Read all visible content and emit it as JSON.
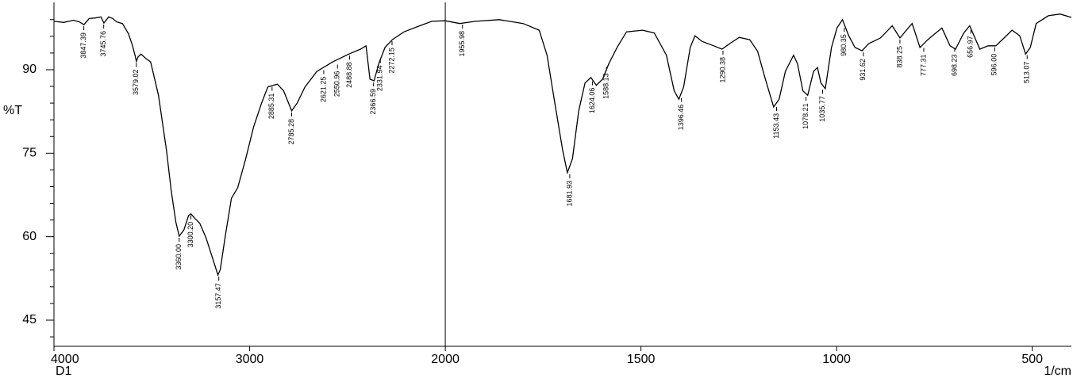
{
  "chart_data": {
    "type": "line",
    "y_label": "%T",
    "x_label": "1/cm",
    "sample": "D1",
    "xlim": [
      4000,
      400
    ],
    "x_break": 2000,
    "x_break_scale": 2,
    "xticks": [
      4000,
      3000,
      2000,
      1500,
      1000,
      500
    ],
    "ylim": [
      40.3,
      102.1
    ],
    "yticks": [
      45,
      60,
      75,
      90
    ],
    "yminor_ticks": [
      42,
      48,
      51,
      54,
      57,
      63,
      66,
      69,
      72,
      78,
      81,
      84,
      87,
      93,
      96,
      99
    ],
    "series": [
      {
        "color": "#000000",
        "x": [
          4000,
          3950,
          3900,
          3870,
          3847,
          3820,
          3790,
          3760,
          3745,
          3720,
          3700,
          3680,
          3650,
          3620,
          3600,
          3585,
          3579,
          3570,
          3555,
          3530,
          3506,
          3466,
          3425,
          3401,
          3377,
          3360,
          3336,
          3312,
          3300,
          3283,
          3255,
          3223,
          3190,
          3162,
          3150,
          3126,
          3093,
          3061,
          3020,
          2980,
          2939,
          2907,
          2879,
          2858,
          2826,
          2785,
          2757,
          2717,
          2656,
          2575,
          2494,
          2433,
          2405,
          2385,
          2364,
          2340,
          2308,
          2271,
          2211,
          2130,
          2069,
          2000,
          1963,
          1923,
          1862,
          1801,
          1760,
          1740,
          1720,
          1700,
          1688,
          1675,
          1659,
          1643,
          1628,
          1614,
          1598,
          1582,
          1561,
          1537,
          1496,
          1466,
          1435,
          1415,
          1403,
          1391,
          1374,
          1362,
          1344,
          1314,
          1293,
          1273,
          1249,
          1222,
          1202,
          1182,
          1161,
          1147,
          1131,
          1110,
          1100,
          1086,
          1074,
          1059,
          1049,
          1040,
          1029,
          1013,
          999,
          985,
          969,
          953,
          935,
          918,
          888,
          858,
          838,
          817,
          807,
          787,
          767,
          731,
          710,
          696,
          675,
          660,
          634,
          613,
          593,
          572,
          552,
          532,
          517,
          505,
          490,
          459,
          429,
          400
        ],
        "values": [
          98.7,
          98.5,
          98.9,
          98.6,
          98.1,
          99.2,
          99.3,
          99.5,
          98.4,
          99.5,
          99.2,
          98.6,
          98.3,
          96.5,
          94.5,
          92.5,
          91.5,
          92.3,
          92.8,
          92.0,
          91.4,
          85.4,
          75.5,
          68.3,
          62.6,
          60.1,
          61.2,
          63.8,
          64.1,
          63.4,
          62.4,
          59.8,
          56.2,
          53.1,
          54.1,
          59.8,
          66.9,
          68.8,
          74.0,
          79.7,
          84.0,
          86.9,
          87.2,
          87.4,
          86.2,
          82.6,
          84.0,
          86.9,
          89.7,
          91.4,
          92.8,
          93.7,
          94.3,
          88.3,
          88.0,
          91.1,
          94.0,
          95.4,
          96.8,
          97.9,
          98.7,
          98.8,
          98.3,
          98.7,
          99.0,
          98.3,
          97.1,
          92.6,
          84.0,
          75.5,
          71.5,
          74.0,
          82.6,
          87.6,
          88.6,
          87.2,
          88.3,
          91.1,
          94.0,
          96.8,
          97.1,
          96.6,
          92.6,
          86.2,
          84.7,
          86.9,
          94.0,
          96.1,
          95.1,
          94.3,
          93.7,
          94.7,
          95.8,
          95.4,
          93.3,
          88.3,
          83.3,
          84.7,
          89.7,
          92.6,
          91.1,
          86.2,
          85.4,
          89.7,
          90.4,
          87.6,
          86.6,
          94.0,
          97.5,
          99.0,
          96.1,
          94.0,
          93.4,
          94.7,
          95.7,
          97.9,
          95.7,
          97.5,
          98.3,
          94.0,
          95.4,
          97.5,
          94.3,
          93.7,
          96.6,
          97.9,
          93.7,
          94.3,
          94.3,
          95.7,
          97.1,
          96.1,
          92.8,
          94.0,
          98.3,
          99.7,
          100.0,
          99.4
        ]
      }
    ],
    "peaks": [
      {
        "x": 3847.39,
        "y": 98.1,
        "label": "3847.39"
      },
      {
        "x": 3745.76,
        "y": 98.4,
        "label": "3745.76"
      },
      {
        "x": 3579.02,
        "y": 91.5,
        "label": "3579.02"
      },
      {
        "x": 3360.0,
        "y": 60.1,
        "label": "3360.00"
      },
      {
        "x": 3300.2,
        "y": 64.1,
        "label": "3300.20"
      },
      {
        "x": 3157.47,
        "y": 53.1,
        "label": "3157.47"
      },
      {
        "x": 2885.31,
        "y": 87.2,
        "label": "2885.31"
      },
      {
        "x": 2785.28,
        "y": 82.6,
        "label": "2785.28"
      },
      {
        "x": 2621.25,
        "y": 90.2,
        "label": "2621.25"
      },
      {
        "x": 2550.96,
        "y": 91.2,
        "label": "2550.96"
      },
      {
        "x": 2488.88,
        "y": 92.8,
        "label": "2488.88"
      },
      {
        "x": 2366.59,
        "y": 88.0,
        "label": "2366.59"
      },
      {
        "x": 2331.94,
        "y": 92.2,
        "label": "2331.94"
      },
      {
        "x": 2272.15,
        "y": 95.4,
        "label": "2272.15"
      },
      {
        "x": 1955.98,
        "y": 98.4,
        "label": "1955.98"
      },
      {
        "x": 1681.93,
        "y": 71.5,
        "label": "1681.93"
      },
      {
        "x": 1624.06,
        "y": 88.2,
        "label": "1624.06"
      },
      {
        "x": 1588.13,
        "y": 90.8,
        "label": "1588.13"
      },
      {
        "x": 1396.46,
        "y": 85.2,
        "label": "1396.46"
      },
      {
        "x": 1290.38,
        "y": 93.7,
        "label": "1290.38"
      },
      {
        "x": 1153.43,
        "y": 83.6,
        "label": "1153.43"
      },
      {
        "x": 1078.21,
        "y": 85.4,
        "label": "1078.21"
      },
      {
        "x": 1035.77,
        "y": 86.7,
        "label": "1035.77"
      },
      {
        "x": 980.35,
        "y": 97.8,
        "label": "980.35"
      },
      {
        "x": 931.62,
        "y": 93.4,
        "label": "931.62"
      },
      {
        "x": 838.25,
        "y": 95.7,
        "label": "838.25"
      },
      {
        "x": 777.31,
        "y": 94.2,
        "label": "777.31"
      },
      {
        "x": 698.23,
        "y": 94.2,
        "label": "698.23"
      },
      {
        "x": 656.97,
        "y": 97.5,
        "label": "656.97"
      },
      {
        "x": 596.0,
        "y": 94.3,
        "label": "596.00"
      },
      {
        "x": 513.07,
        "y": 92.9,
        "label": "513.07"
      }
    ]
  }
}
